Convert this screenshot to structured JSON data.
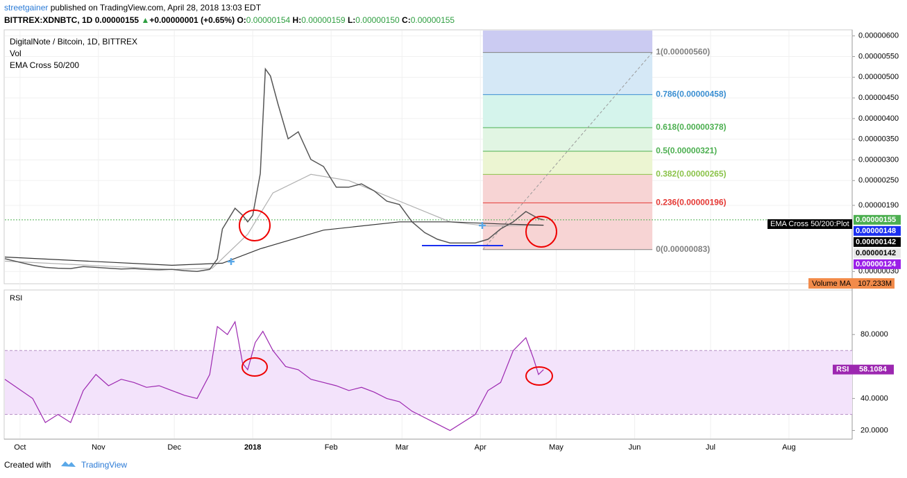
{
  "header": {
    "user": "streetgainer",
    "published": "published on TradingView.com, April 28, 2018 13:03 EDT",
    "symbol": "BITTREX:XDNBTC, 1D",
    "last": "0.00000155",
    "arrow": "▲",
    "change": "+0.00000001 (+0.65%)",
    "o_label": "O:",
    "o": "0.00000154",
    "h_label": "H:",
    "h": "0.00000159",
    "l_label": "L:",
    "l": "0.00000150",
    "c_label": "C:",
    "c": "0.00000155"
  },
  "legend": {
    "title": "DigitalNote / Bitcoin, 1D, BITTREX",
    "vol": "Vol",
    "ema": "EMA Cross 50/200"
  },
  "chart_data": [
    {
      "type": "line",
      "color": "#555555",
      "xlim": [
        -6,
        329
      ],
      "ylim": [
        2e-08,
        6.13e-06
      ],
      "xticks": [
        {
          "value": 0,
          "label": "Oct"
        },
        {
          "value": 31,
          "label": "Nov"
        },
        {
          "value": 61,
          "label": "Dec"
        },
        {
          "value": 92,
          "label": "2018"
        },
        {
          "value": 123,
          "label": "Feb"
        },
        {
          "value": 151,
          "label": "Mar"
        },
        {
          "value": 182,
          "label": "Apr"
        },
        {
          "value": 212,
          "label": "May"
        },
        {
          "value": 243,
          "label": "Jun"
        },
        {
          "value": 273,
          "label": "Jul"
        },
        {
          "value": 304,
          "label": "Aug"
        }
      ],
      "yticks": [
        {
          "value": 6e-06,
          "label": "0.00000600"
        },
        {
          "value": 5.5e-06,
          "label": "0.00000550"
        },
        {
          "value": 5e-06,
          "label": "0.00000500"
        },
        {
          "value": 4.5e-06,
          "label": "0.00000450"
        },
        {
          "value": 4e-06,
          "label": "0.00000400"
        },
        {
          "value": 3.5e-06,
          "label": "0.00000350"
        },
        {
          "value": 3e-06,
          "label": "0.00000300"
        },
        {
          "value": 2.5e-06,
          "label": "0.00000250"
        },
        {
          "value": 1.9e-06,
          "label": "0.00000190"
        },
        {
          "value": 3e-07,
          "label": "0.00000030"
        }
      ],
      "x": [
        -6,
        0,
        5,
        10,
        15,
        20,
        25,
        30,
        35,
        40,
        45,
        50,
        55,
        60,
        65,
        70,
        75,
        78,
        80,
        85,
        88,
        90,
        92,
        95,
        97,
        99,
        102,
        106,
        110,
        115,
        120,
        125,
        130,
        135,
        140,
        145,
        150,
        155,
        160,
        165,
        170,
        175,
        180,
        185,
        190,
        195,
        200,
        205,
        207
      ],
      "values": [
        6.1e-07,
        5.2e-07,
        4.5e-07,
        4e-07,
        3.8e-07,
        3.7e-07,
        4.2e-07,
        4e-07,
        3.8e-07,
        3.6e-07,
        3.7e-07,
        3.5e-07,
        3.4e-07,
        3.5e-07,
        3.2e-07,
        3e-07,
        3.5e-07,
        6e-07,
        1.33e-06,
        1.83e-06,
        1.66e-06,
        1.5e-06,
        1.66e-06,
        2.67e-06,
        5.2e-06,
        5.03e-06,
        4.35e-06,
        3.51e-06,
        3.68e-06,
        3.01e-06,
        2.84e-06,
        2.34e-06,
        2.34e-06,
        2.42e-06,
        2.25e-06,
        2e-06,
        1.92e-06,
        1.5e-06,
        1.24e-06,
        1.08e-06,
        9.9e-07,
        9.9e-07,
        9.9e-07,
        1.08e-06,
        1.33e-06,
        1.5e-06,
        1.75e-06,
        1.58e-06,
        1.55e-06
      ]
    },
    {
      "type": "line",
      "color": "#b0b0b0",
      "x": [
        -6,
        60,
        76,
        90,
        100,
        115,
        130,
        150,
        170,
        185,
        207
      ],
      "values": [
        5.5e-07,
        3.5e-07,
        3.8e-07,
        1.2e-06,
        2.2e-06,
        2.65e-06,
        2.5e-06,
        2e-06,
        1.5e-06,
        1.4e-06,
        1.42e-06
      ]
    },
    {
      "type": "line",
      "color": "#333333",
      "x": [
        -6,
        60,
        80,
        95,
        120,
        150,
        170,
        190,
        207
      ],
      "values": [
        6.5e-07,
        4.5e-07,
        5e-07,
        8.5e-07,
        1.3e-06,
        1.5e-06,
        1.5e-06,
        1.45e-06,
        1.42e-06
      ]
    },
    {
      "type": "line",
      "title": "RSI",
      "color": "#9c27b0",
      "ylim": [
        15,
        107
      ],
      "band": [
        30,
        70
      ],
      "yticks": [
        {
          "value": 80,
          "label": "80.0000"
        },
        {
          "value": 40,
          "label": "40.0000"
        },
        {
          "value": 20,
          "label": "20.0000"
        }
      ],
      "x": [
        -6,
        5,
        10,
        15,
        20,
        25,
        30,
        35,
        40,
        45,
        50,
        55,
        60,
        65,
        70,
        75,
        78,
        82,
        85,
        88,
        90,
        93,
        96,
        100,
        105,
        110,
        115,
        120,
        125,
        130,
        135,
        140,
        145,
        150,
        155,
        160,
        165,
        170,
        175,
        180,
        185,
        190,
        195,
        200,
        203,
        205,
        207
      ],
      "values": [
        52,
        40,
        25,
        30,
        25,
        45,
        55,
        48,
        52,
        50,
        47,
        48,
        45,
        42,
        40,
        55,
        85,
        80,
        88,
        62,
        58,
        75,
        82,
        70,
        60,
        58,
        52,
        50,
        48,
        45,
        47,
        44,
        40,
        38,
        32,
        28,
        24,
        20,
        25,
        30,
        45,
        50,
        70,
        78,
        65,
        55,
        58.1084
      ],
      "current": {
        "name": "RSI",
        "value": 58.1084,
        "label": "58.1084"
      }
    }
  ],
  "fib": {
    "x": [
      183,
      250
    ],
    "levels": [
      {
        "label": "1(0.00000560)",
        "value": 5.6e-06,
        "color": "#808080",
        "fill": "#e4e4e4"
      },
      {
        "label": "0.786(0.00000458)",
        "value": 4.58e-06,
        "color": "#3a8ed1",
        "fill": "#d5e8f6"
      },
      {
        "label": "0.618(0.00000378)",
        "value": 3.78e-06,
        "color": "#4caf50",
        "fill": "#d5f4ec"
      },
      {
        "label": "0.5(0.00000321)",
        "value": 3.21e-06,
        "color": "#4caf50",
        "fill": "#e1f5e3"
      },
      {
        "label": "0.382(0.00000265)",
        "value": 2.65e-06,
        "color": "#8bc34a",
        "fill": "#ecf5d2"
      },
      {
        "label": "0.236(0.00000196)",
        "value": 1.96e-06,
        "color": "#e53935",
        "fill": "#f7d4d4"
      },
      {
        "label": "0(0.00000083)",
        "value": 8.3e-07,
        "color": "#808080",
        "fill": "#f7d4d4"
      }
    ]
  },
  "price_labels": [
    {
      "label": "0.00000155",
      "value": 1.55e-06,
      "color": "#4caf50"
    },
    {
      "label": "0.00000148",
      "value": 1.48e-06,
      "color": "#1a2ff0"
    },
    {
      "label": "0.00000142",
      "value": 1.42e-06,
      "color": "#000000"
    },
    {
      "label": "0.00000142",
      "value": 1.42e-06,
      "color": "#e8e8e8"
    },
    {
      "label": "0.00000124",
      "value": 1.24e-06,
      "color": "#9b1fe8"
    }
  ],
  "plot_tag": "EMA Cross 50/200:Plot",
  "volume": {
    "name": "Volume MA",
    "value": "107.233M"
  },
  "footer": {
    "created": "Created with",
    "brand": "TradingView"
  }
}
